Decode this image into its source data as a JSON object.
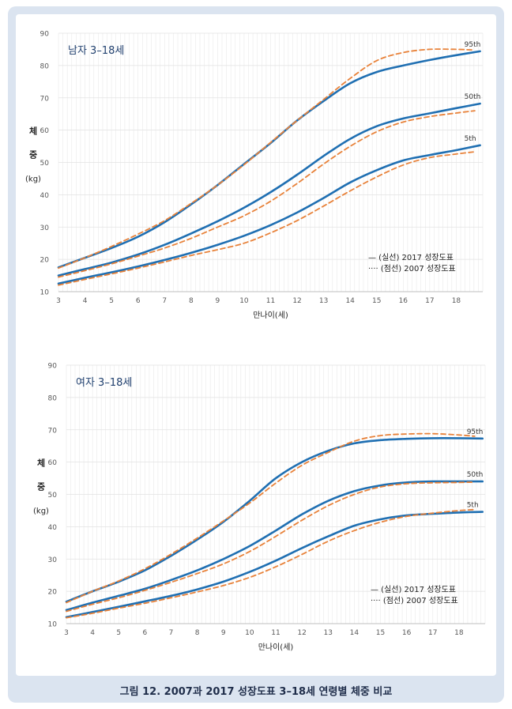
{
  "caption": "그림 12. 2007과 2017 성장도표 3–18세 연령별 체중 비교",
  "colors": {
    "frame": "#dbe4f0",
    "series_2017": "#1f6fb2",
    "series_2007": "#e8823a",
    "grid": "#e9e9e9",
    "title_text": "#1f3f6e"
  },
  "chart_data": [
    {
      "type": "line",
      "title": "남자 3–18세",
      "xlabel": "만나이(세)",
      "ylabel_chars": [
        "체",
        "중",
        "(kg)"
      ],
      "xlim": [
        3,
        19
      ],
      "ylim": [
        10,
        90
      ],
      "x_ticks": [
        3,
        4,
        5,
        6,
        7,
        8,
        9,
        10,
        11,
        12,
        13,
        14,
        15,
        16,
        17,
        18
      ],
      "y_ticks": [
        10,
        20,
        30,
        40,
        50,
        60,
        70,
        80,
        90
      ],
      "legend": {
        "solid": "— (실선) 2017 성장도표",
        "dotted": "···· (점선) 2007 성장도표",
        "placement": "bottom-right"
      },
      "series": [
        {
          "name": "95th",
          "year": "2017",
          "label": "95th",
          "x": [
            3,
            4,
            5,
            6,
            7,
            8,
            9,
            10,
            11,
            12,
            13,
            14,
            15,
            16,
            17,
            18,
            18.9
          ],
          "values": [
            17.5,
            20.5,
            23.5,
            27,
            31.5,
            37,
            43,
            49.5,
            56,
            63,
            69,
            74.5,
            78,
            80,
            81.7,
            83.2,
            84.4
          ]
        },
        {
          "name": "95th",
          "year": "2007",
          "label": "",
          "x": [
            3,
            4,
            5,
            6,
            7,
            8,
            9,
            10,
            11,
            12,
            13,
            14,
            15,
            16,
            17,
            18,
            18.7
          ],
          "values": [
            17.3,
            20.5,
            24,
            27.8,
            32,
            37.3,
            43,
            49.3,
            56.2,
            63,
            69.5,
            76,
            81.5,
            84,
            85,
            85,
            84.8
          ]
        },
        {
          "name": "50th",
          "year": "2017",
          "label": "50th",
          "x": [
            3,
            4,
            5,
            6,
            7,
            8,
            9,
            10,
            11,
            12,
            13,
            14,
            15,
            16,
            17,
            18,
            18.9
          ],
          "values": [
            15,
            17,
            19,
            21.5,
            24.5,
            28,
            31.8,
            36,
            40.8,
            46.2,
            52,
            57.3,
            61.2,
            63.6,
            65.2,
            66.8,
            68.2
          ]
        },
        {
          "name": "50th",
          "year": "2007",
          "label": "",
          "x": [
            3,
            4,
            5,
            6,
            7,
            8,
            9,
            10,
            11,
            12,
            13,
            14,
            15,
            16,
            17,
            18,
            18.7
          ],
          "values": [
            14.5,
            16.5,
            18.6,
            21,
            23.5,
            26.5,
            30,
            33.5,
            38,
            43.5,
            49.5,
            55,
            59.5,
            62.5,
            64.2,
            65.3,
            66
          ]
        },
        {
          "name": "5th",
          "year": "2017",
          "label": "5th",
          "x": [
            3,
            4,
            5,
            6,
            7,
            8,
            9,
            10,
            11,
            12,
            13,
            14,
            15,
            16,
            17,
            18,
            18.9
          ],
          "values": [
            12.5,
            14.3,
            16,
            17.8,
            19.8,
            22,
            24.5,
            27.3,
            30.6,
            34.5,
            39,
            43.8,
            47.6,
            50.6,
            52.3,
            53.8,
            55.3
          ]
        },
        {
          "name": "5th",
          "year": "2007",
          "label": "",
          "x": [
            3,
            4,
            5,
            6,
            7,
            8,
            9,
            10,
            11,
            12,
            13,
            14,
            15,
            16,
            17,
            18,
            18.7
          ],
          "values": [
            12,
            13.8,
            15.5,
            17.3,
            19.2,
            21.2,
            23,
            25,
            28.2,
            32,
            36.5,
            41.2,
            45.5,
            49.2,
            51.5,
            52.6,
            53.3
          ]
        }
      ]
    },
    {
      "type": "line",
      "title": "여자 3–18세",
      "xlabel": "만나이(세)",
      "ylabel_chars": [
        "체",
        "중",
        "(kg)"
      ],
      "xlim": [
        3,
        19
      ],
      "ylim": [
        10,
        90
      ],
      "x_ticks": [
        3,
        4,
        5,
        6,
        7,
        8,
        9,
        10,
        11,
        12,
        13,
        14,
        15,
        16,
        17,
        18
      ],
      "y_ticks": [
        10,
        20,
        30,
        40,
        50,
        60,
        70,
        80,
        90
      ],
      "legend": {
        "solid": "— (실선) 2017 성장도표",
        "dotted": "···· (점선) 2007 성장도표",
        "placement": "bottom-right"
      },
      "series": [
        {
          "name": "95th",
          "year": "2017",
          "label": "95th",
          "x": [
            3,
            4,
            5,
            6,
            7,
            8,
            9,
            10,
            11,
            12,
            13,
            14,
            15,
            16,
            17,
            18,
            18.9
          ],
          "values": [
            16.8,
            20,
            23,
            26.5,
            31,
            36,
            41.5,
            48,
            55,
            60,
            63.5,
            65.8,
            66.8,
            67.2,
            67.4,
            67.4,
            67.3
          ]
        },
        {
          "name": "95th",
          "year": "2007",
          "label": "",
          "x": [
            3,
            4,
            5,
            6,
            7,
            8,
            9,
            10,
            11,
            12,
            13,
            14,
            15,
            16,
            17,
            18,
            18.6
          ],
          "values": [
            16.5,
            20,
            23.2,
            27,
            31.5,
            36.5,
            41.8,
            47.3,
            53.5,
            59,
            63,
            66.5,
            68.2,
            68.7,
            68.8,
            68.4,
            68
          ]
        },
        {
          "name": "50th",
          "year": "2017",
          "label": "50th",
          "x": [
            3,
            4,
            5,
            6,
            7,
            8,
            9,
            10,
            11,
            12,
            13,
            14,
            15,
            16,
            17,
            18,
            18.9
          ],
          "values": [
            14.2,
            16.5,
            18.6,
            20.8,
            23.5,
            26.5,
            30,
            34,
            38.8,
            43.8,
            48,
            51,
            52.8,
            53.7,
            54,
            54,
            54
          ]
        },
        {
          "name": "50th",
          "year": "2007",
          "label": "",
          "x": [
            3,
            4,
            5,
            6,
            7,
            8,
            9,
            10,
            11,
            12,
            13,
            14,
            15,
            16,
            17,
            18,
            18.6
          ],
          "values": [
            13.8,
            16,
            18,
            20.3,
            22.8,
            25.5,
            28.5,
            32.3,
            37,
            42,
            46.5,
            50,
            52.3,
            53.3,
            53.6,
            53.7,
            53.8
          ]
        },
        {
          "name": "5th",
          "year": "2017",
          "label": "5th",
          "x": [
            3,
            4,
            5,
            6,
            7,
            8,
            9,
            10,
            11,
            12,
            13,
            14,
            15,
            16,
            17,
            18,
            18.9
          ],
          "values": [
            12,
            13.6,
            15.2,
            16.9,
            18.6,
            20.6,
            23,
            26,
            29.5,
            33.4,
            37,
            40.3,
            42.3,
            43.5,
            44,
            44.4,
            44.6
          ]
        },
        {
          "name": "5th",
          "year": "2007",
          "label": "",
          "x": [
            3,
            4,
            5,
            6,
            7,
            8,
            9,
            10,
            11,
            12,
            13,
            14,
            15,
            16,
            17,
            18,
            18.6
          ],
          "values": [
            11.8,
            13.2,
            14.8,
            16.3,
            18,
            19.8,
            21.8,
            24.3,
            27.6,
            31.4,
            35.5,
            38.8,
            41.4,
            43.2,
            44.2,
            45,
            45.3
          ]
        }
      ]
    }
  ]
}
